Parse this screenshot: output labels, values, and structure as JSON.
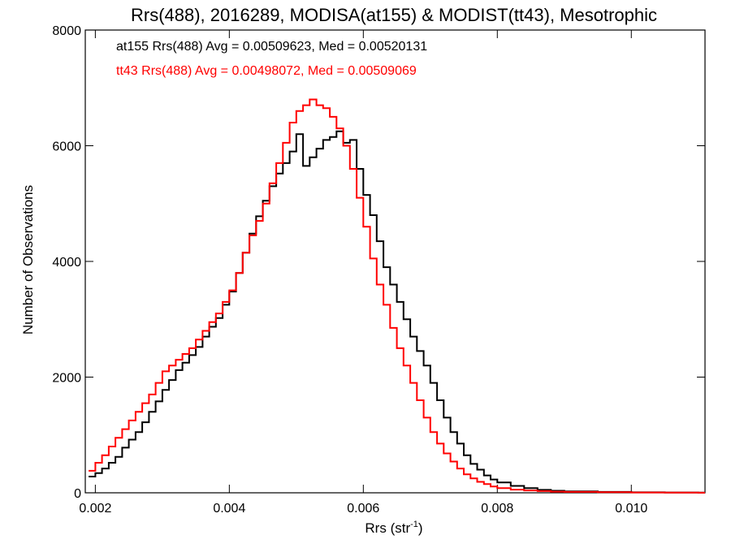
{
  "chart_data": {
    "type": "line",
    "step": true,
    "title": "Rrs(488), 2016289, MODISA(at155) & MODIST(tt43), Mesotrophic",
    "xlabel": "Rrs (str",
    "xlabel_sup": "-1",
    "xlabel_close": ")",
    "ylabel": "Number of Observations",
    "xlim": [
      0.00185,
      0.0111
    ],
    "ylim": [
      0,
      8000
    ],
    "x_ticks": [
      0.002,
      0.004,
      0.006,
      0.008,
      0.01
    ],
    "x_tick_labels": [
      "0.002",
      "0.004",
      "0.006",
      "0.008",
      "0.010"
    ],
    "y_ticks": [
      0,
      2000,
      4000,
      6000,
      8000
    ],
    "y_tick_labels": [
      "0",
      "2000",
      "4000",
      "6000",
      "8000"
    ],
    "grid": false,
    "legend_placement": "top-left",
    "series": [
      {
        "name": "at155 Rrs(488) Avg = 0.00509623, Med = 0.00520131",
        "color": "#000000",
        "x": [
          0.0019,
          0.002,
          0.0021,
          0.0022,
          0.0023,
          0.0024,
          0.0025,
          0.0026,
          0.0027,
          0.0028,
          0.0029,
          0.003,
          0.0031,
          0.0032,
          0.0033,
          0.0034,
          0.0035,
          0.0036,
          0.0037,
          0.0038,
          0.0039,
          0.004,
          0.0041,
          0.0042,
          0.0043,
          0.0044,
          0.0045,
          0.0046,
          0.0047,
          0.0048,
          0.0049,
          0.005,
          0.0051,
          0.0052,
          0.0053,
          0.0054,
          0.0055,
          0.0056,
          0.0057,
          0.0058,
          0.0059,
          0.006,
          0.0061,
          0.0062,
          0.0063,
          0.0064,
          0.0065,
          0.0066,
          0.0067,
          0.0068,
          0.0069,
          0.007,
          0.0071,
          0.0072,
          0.0073,
          0.0074,
          0.0075,
          0.0076,
          0.0077,
          0.0078,
          0.0079,
          0.008,
          0.0082,
          0.0084,
          0.0086,
          0.0088,
          0.009,
          0.0095,
          0.01,
          0.0105,
          0.011
        ],
        "values": [
          280,
          340,
          420,
          520,
          620,
          780,
          920,
          1050,
          1220,
          1400,
          1580,
          1780,
          1950,
          2120,
          2250,
          2380,
          2520,
          2700,
          2870,
          3020,
          3250,
          3480,
          3800,
          4150,
          4480,
          4780,
          5050,
          5300,
          5520,
          5700,
          5900,
          6200,
          5650,
          5800,
          5950,
          6100,
          6150,
          6250,
          6050,
          6100,
          5600,
          5150,
          4800,
          4350,
          3900,
          3600,
          3300,
          3000,
          2700,
          2450,
          2200,
          1900,
          1600,
          1300,
          1050,
          850,
          650,
          500,
          400,
          300,
          230,
          180,
          120,
          80,
          50,
          35,
          25,
          15,
          8,
          5,
          3
        ]
      },
      {
        "name": "tt43 Rrs(488) Avg = 0.00498072, Med = 0.00509069",
        "color": "#ff0000",
        "x": [
          0.0019,
          0.002,
          0.0021,
          0.0022,
          0.0023,
          0.0024,
          0.0025,
          0.0026,
          0.0027,
          0.0028,
          0.0029,
          0.003,
          0.0031,
          0.0032,
          0.0033,
          0.0034,
          0.0035,
          0.0036,
          0.0037,
          0.0038,
          0.0039,
          0.004,
          0.0041,
          0.0042,
          0.0043,
          0.0044,
          0.0045,
          0.0046,
          0.0047,
          0.0048,
          0.0049,
          0.005,
          0.0051,
          0.0052,
          0.0053,
          0.0054,
          0.0055,
          0.0056,
          0.0057,
          0.0058,
          0.0059,
          0.006,
          0.0061,
          0.0062,
          0.0063,
          0.0064,
          0.0065,
          0.0066,
          0.0067,
          0.0068,
          0.0069,
          0.007,
          0.0071,
          0.0072,
          0.0073,
          0.0074,
          0.0075,
          0.0076,
          0.0077,
          0.0078,
          0.0079,
          0.008,
          0.0082,
          0.0084,
          0.0086,
          0.0088,
          0.009,
          0.0095,
          0.01,
          0.0105,
          0.011
        ],
        "values": [
          380,
          520,
          650,
          800,
          950,
          1100,
          1250,
          1400,
          1550,
          1700,
          1900,
          2100,
          2200,
          2300,
          2400,
          2500,
          2650,
          2800,
          2950,
          3100,
          3300,
          3500,
          3800,
          4150,
          4450,
          4700,
          5000,
          5350,
          5700,
          6050,
          6400,
          6600,
          6700,
          6800,
          6700,
          6650,
          6500,
          6300,
          6000,
          5600,
          5100,
          4600,
          4050,
          3600,
          3250,
          2850,
          2500,
          2200,
          1900,
          1600,
          1300,
          1050,
          850,
          680,
          540,
          420,
          320,
          250,
          190,
          150,
          110,
          80,
          55,
          40,
          30,
          20,
          15,
          10,
          6,
          4,
          2
        ]
      }
    ]
  }
}
